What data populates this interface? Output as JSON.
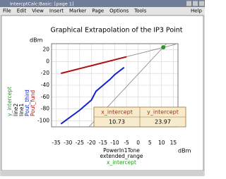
{
  "window": {
    "title": "IntercptCalc:Basic: [page 1]"
  },
  "menu": {
    "items": [
      "File",
      "Edit",
      "View",
      "Insert",
      "Marker",
      "Page",
      "Options",
      "Tools"
    ],
    "help": "Help"
  },
  "plot": {
    "title": "Graphical Extrapolation of the IP3 Point",
    "y_unit": "dBm",
    "x_unit": "dBm",
    "x_labels": [
      "PowerIn1Tone",
      "extended_range"
    ],
    "x_label_marker": "x_intercept",
    "xlim": [
      -37,
      17
    ],
    "ylim": [
      -110,
      30
    ],
    "xticks": [
      -35,
      -30,
      -25,
      -20,
      -15,
      -10,
      -5,
      0,
      5,
      10,
      15
    ],
    "yticks": [
      -100,
      -80,
      -60,
      -40,
      -20,
      0,
      20
    ],
    "grid": true,
    "series": [
      {
        "name": "Pout_fund",
        "color": "#aa1111",
        "x": [
          -33,
          -5
        ],
        "values": [
          -20,
          8
        ]
      },
      {
        "name": "Pout_third",
        "color": "#1122cc",
        "x": [
          -33,
          -25,
          -20,
          -18,
          -15,
          -12,
          -10,
          -6
        ],
        "values": [
          -105,
          -82,
          -65,
          -50,
          -40,
          -30,
          -22,
          -10
        ]
      },
      {
        "name": "line1",
        "color": "#808080",
        "x": [
          -33,
          16
        ],
        "values": [
          -19.8,
          29
        ]
      },
      {
        "name": "line2",
        "color": "#808080",
        "x": [
          -21,
          12
        ],
        "values": [
          -110,
          29.6
        ]
      },
      {
        "name": "y_intercept",
        "color": "#229922",
        "x": [
          10.73
        ],
        "values": [
          23.97
        ]
      }
    ],
    "table": {
      "header": [
        "x_intercept",
        "y_intercept"
      ],
      "row": [
        10.73,
        23.97
      ]
    }
  }
}
